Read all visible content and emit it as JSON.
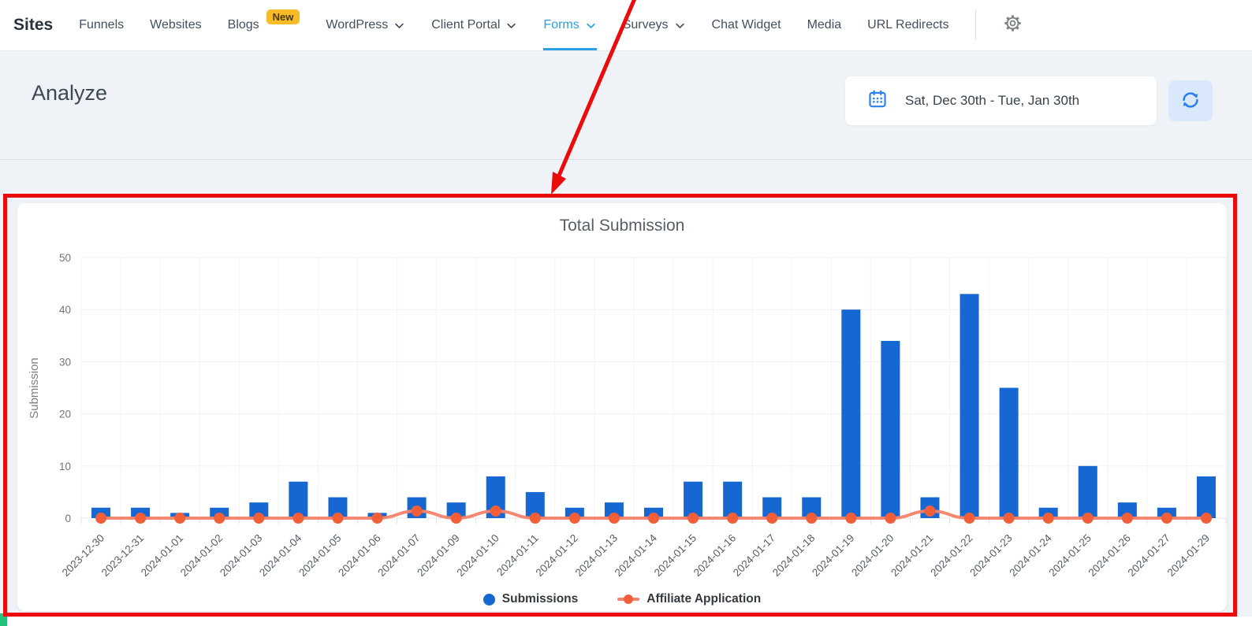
{
  "nav": {
    "brand": "Sites",
    "items": [
      {
        "label": "Funnels"
      },
      {
        "label": "Websites"
      },
      {
        "label": "Blogs",
        "badge": "New"
      },
      {
        "label": "WordPress",
        "chevron": true
      },
      {
        "label": "Client Portal",
        "chevron": true
      },
      {
        "label": "Forms",
        "chevron": true,
        "active": true
      },
      {
        "label": "Surveys",
        "chevron": true
      },
      {
        "label": "Chat Widget"
      },
      {
        "label": "Media"
      },
      {
        "label": "URL Redirects"
      }
    ],
    "active_color": "#2d9fe6",
    "badge_color": "#f7bb26"
  },
  "header": {
    "title": "Analyze",
    "date_range": "Sat, Dec 30th - Tue, Jan 30th",
    "calendar_icon_color": "#2b7ff0",
    "refresh_icon_color": "#2b7ff0"
  },
  "chart_data": {
    "type": "bar",
    "title": "Total Submission",
    "ylabel": "Submission",
    "xlabel": "",
    "ylim": [
      0,
      50
    ],
    "yticks": [
      0,
      10,
      20,
      30,
      40,
      50
    ],
    "grid": true,
    "legend_position": "bottom",
    "categories": [
      "2023-12-30",
      "2023-12-31",
      "2024-01-01",
      "2024-01-02",
      "2024-01-03",
      "2024-01-04",
      "2024-01-05",
      "2024-01-06",
      "2024-01-07",
      "2024-01-09",
      "2024-01-10",
      "2024-01-11",
      "2024-01-12",
      "2024-01-13",
      "2024-01-14",
      "2024-01-15",
      "2024-01-16",
      "2024-01-17",
      "2024-01-18",
      "2024-01-19",
      "2024-01-20",
      "2024-01-21",
      "2024-01-22",
      "2024-01-23",
      "2024-01-24",
      "2024-01-25",
      "2024-01-26",
      "2024-01-27",
      "2024-01-29"
    ],
    "series": [
      {
        "name": "Submissions",
        "type": "bar",
        "color": "#1767d2",
        "values": [
          2,
          2,
          1,
          2,
          3,
          7,
          4,
          1,
          4,
          3,
          8,
          5,
          2,
          3,
          2,
          7,
          7,
          4,
          4,
          40,
          34,
          4,
          43,
          25,
          2,
          10,
          3,
          2,
          8
        ]
      },
      {
        "name": "Affiliate Application",
        "type": "line",
        "color": "#f15f39",
        "line_color": "#f4826a",
        "values": [
          0,
          0,
          0,
          0,
          0,
          0,
          0,
          0,
          1,
          0,
          1,
          0,
          0,
          0,
          0,
          0,
          0,
          0,
          0,
          0,
          0,
          1,
          0,
          0,
          0,
          0,
          0,
          0,
          0
        ]
      }
    ]
  },
  "annotation": {
    "highlight_color": "#ec0b0b",
    "corner_mark_color": "#24c17b"
  }
}
